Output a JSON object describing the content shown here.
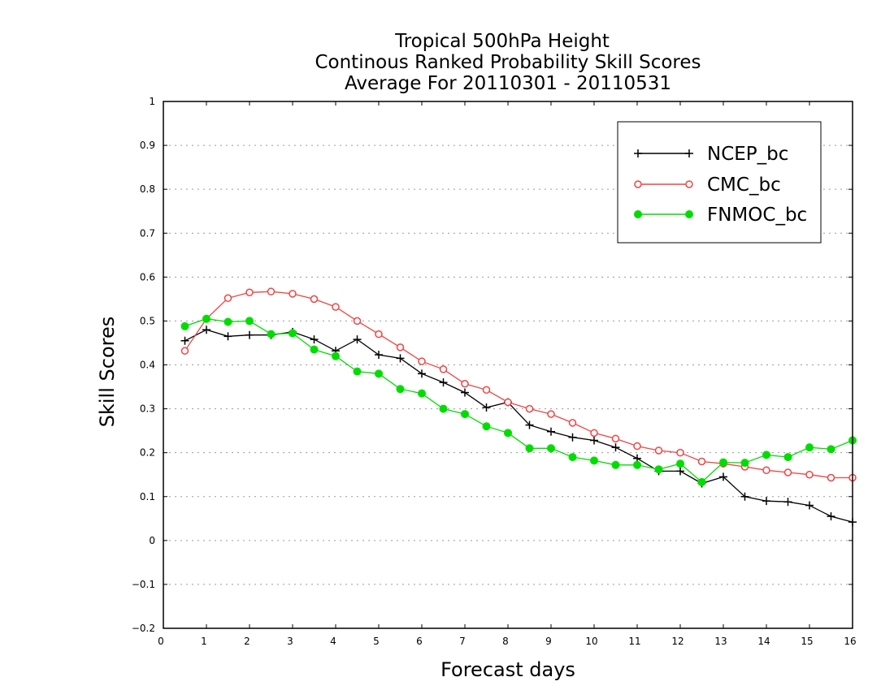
{
  "chart_data": {
    "type": "line",
    "title": [
      "Tropical 500hPa Height",
      "Continous Ranked Probability Skill Scores",
      "Average For 20110301 - 20110531"
    ],
    "xlabel": "Forecast days",
    "ylabel": "Skill Scores",
    "xlim": [
      0,
      16
    ],
    "ylim": [
      -0.2,
      1
    ],
    "xticks": [
      "0",
      "1",
      "2",
      "3",
      "4",
      "5",
      "6",
      "7",
      "8",
      "9",
      "10",
      "11",
      "12",
      "13",
      "14",
      "15",
      "16"
    ],
    "yticks": [
      "−0.2",
      "−0.1",
      "0",
      "0.1",
      "0.2",
      "0.3",
      "0.4",
      "0.5",
      "0.6",
      "0.7",
      "0.8",
      "0.9",
      "1"
    ],
    "grid": "horizontal dotted",
    "legend_position": "top-right",
    "x": [
      0.5,
      1,
      1.5,
      2,
      2.5,
      3,
      3.5,
      4,
      4.5,
      5,
      5.5,
      6,
      6.5,
      7,
      7.5,
      8,
      8.5,
      9,
      9.5,
      10,
      10.5,
      11,
      11.5,
      12,
      12.5,
      13,
      13.5,
      14,
      14.5,
      15,
      15.5,
      16
    ],
    "series": [
      {
        "name": "NCEP_bc",
        "color": "#000000",
        "marker": "plus",
        "values": [
          0.455,
          0.48,
          0.465,
          0.468,
          0.468,
          0.475,
          0.458,
          0.432,
          0.458,
          0.423,
          0.415,
          0.38,
          0.36,
          0.337,
          0.303,
          0.315,
          0.263,
          0.248,
          0.235,
          0.228,
          0.212,
          0.187,
          0.158,
          0.158,
          0.13,
          0.145,
          0.1,
          0.09,
          0.088,
          0.08,
          0.055,
          0.042
        ]
      },
      {
        "name": "CMC_bc",
        "color": "#ee4444",
        "marker": "open-circle",
        "values": [
          0.432,
          0.505,
          0.552,
          0.565,
          0.567,
          0.562,
          0.55,
          0.532,
          0.5,
          0.47,
          0.44,
          0.408,
          0.39,
          0.357,
          0.343,
          0.315,
          0.3,
          0.288,
          0.268,
          0.245,
          0.232,
          0.215,
          0.205,
          0.2,
          0.18,
          0.175,
          0.168,
          0.16,
          0.155,
          0.15,
          0.143,
          0.143
        ]
      },
      {
        "name": "FNMOC_bc",
        "color": "#00dd00",
        "marker": "filled-circle",
        "values": [
          0.488,
          0.505,
          0.498,
          0.5,
          0.47,
          0.472,
          0.435,
          0.42,
          0.385,
          0.38,
          0.345,
          0.335,
          0.3,
          0.288,
          0.26,
          0.245,
          0.21,
          0.21,
          0.19,
          0.182,
          0.172,
          0.172,
          0.162,
          0.175,
          0.133,
          0.178,
          0.177,
          0.195,
          0.19,
          0.212,
          0.208,
          0.228
        ]
      }
    ]
  }
}
